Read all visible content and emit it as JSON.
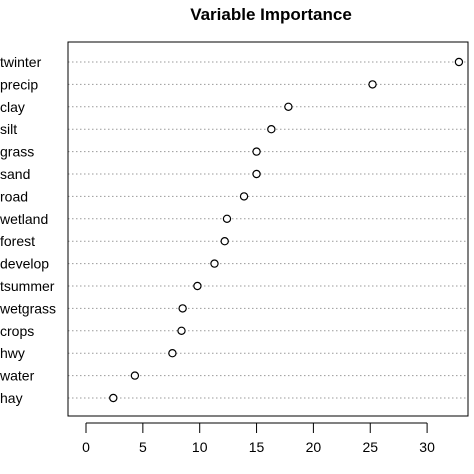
{
  "chart_data": {
    "type": "scatter",
    "title": "Variable Importance",
    "xlabel": "",
    "ylabel": "",
    "xlim": [
      0,
      33
    ],
    "xticks": [
      0,
      5,
      10,
      15,
      20,
      25,
      30
    ],
    "grid": "horizontal dotted",
    "legend": "none",
    "categories": [
      "twinter",
      "precip",
      "clay",
      "silt",
      "grass",
      "sand",
      "road",
      "wetland",
      "forest",
      "develop",
      "tsummer",
      "wetgrass",
      "crops",
      "hwy",
      "water",
      "hay"
    ],
    "values": [
      32.8,
      25.2,
      17.8,
      16.3,
      15.0,
      15.0,
      13.9,
      12.4,
      12.2,
      11.3,
      9.8,
      8.5,
      8.4,
      7.6,
      4.3,
      2.4
    ]
  }
}
